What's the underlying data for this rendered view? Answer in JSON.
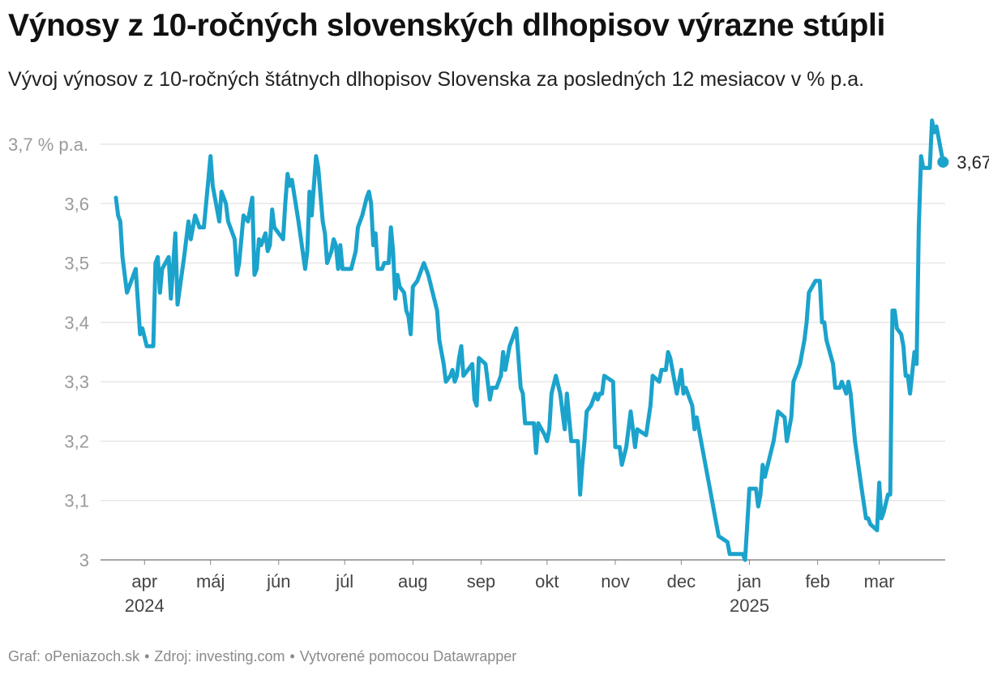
{
  "title": "Výnosy z 10-ročných slovenských dlhopisov výrazne stúpli",
  "subtitle": "Vývoj výnosov z 10-ročných štátnych dlhopisov Slovenska za posledných 12 mesiacov v % p.a.",
  "footer": {
    "graph": "Graf: oPeniazoch.sk",
    "source": "Zdroj: investing.com",
    "made": "Vytvorené pomocou Datawrapper"
  },
  "colors": {
    "line": "#1ba3cc",
    "grid": "#e2e2e2",
    "baseline": "#888888"
  },
  "chart_data": {
    "type": "line",
    "title": "Výnosy z 10-ročných slovenských dlhopisov výrazne stúpli",
    "subtitle": "Vývoj výnosov z 10-ročných štátnych dlhopisov Slovenska za posledných 12 mesiacov v % p.a.",
    "xlabel": "",
    "ylabel": "",
    "ylim": [
      3.0,
      3.7
    ],
    "xlim": [
      "2024-03-12",
      "2025-03-31"
    ],
    "grid": true,
    "y_ticks": [
      {
        "v": 3.7,
        "label": "3,7 % p.a."
      },
      {
        "v": 3.6,
        "label": "3,6"
      },
      {
        "v": 3.5,
        "label": "3,5"
      },
      {
        "v": 3.4,
        "label": "3,4"
      },
      {
        "v": 3.3,
        "label": "3,3"
      },
      {
        "v": 3.2,
        "label": "3,2"
      },
      {
        "v": 3.1,
        "label": "3,1"
      },
      {
        "v": 3.0,
        "label": "3"
      }
    ],
    "x_ticks": [
      {
        "date": "2024-04-01",
        "label": "apr",
        "year": "2024"
      },
      {
        "date": "2024-05-01",
        "label": "máj",
        "year": ""
      },
      {
        "date": "2024-06-01",
        "label": "jún",
        "year": ""
      },
      {
        "date": "2024-07-01",
        "label": "júl",
        "year": ""
      },
      {
        "date": "2024-08-01",
        "label": "aug",
        "year": ""
      },
      {
        "date": "2024-09-01",
        "label": "sep",
        "year": ""
      },
      {
        "date": "2024-10-01",
        "label": "okt",
        "year": ""
      },
      {
        "date": "2024-11-01",
        "label": "nov",
        "year": ""
      },
      {
        "date": "2024-12-01",
        "label": "dec",
        "year": ""
      },
      {
        "date": "2025-01-01",
        "label": "jan",
        "year": "2025"
      },
      {
        "date": "2025-02-01",
        "label": "feb",
        "year": ""
      },
      {
        "date": "2025-03-01",
        "label": "mar",
        "year": ""
      }
    ],
    "end_label": "3,67",
    "series": [
      {
        "points": [
          [
            "2024-03-19",
            3.61
          ],
          [
            "2024-03-20",
            3.58
          ],
          [
            "2024-03-21",
            3.57
          ],
          [
            "2024-03-22",
            3.51
          ],
          [
            "2024-03-24",
            3.45
          ],
          [
            "2024-03-26",
            3.47
          ],
          [
            "2024-03-28",
            3.49
          ],
          [
            "2024-03-30",
            3.38
          ],
          [
            "2024-03-31",
            3.39
          ],
          [
            "2024-04-02",
            3.36
          ],
          [
            "2024-04-05",
            3.36
          ],
          [
            "2024-04-06",
            3.5
          ],
          [
            "2024-04-07",
            3.51
          ],
          [
            "2024-04-08",
            3.45
          ],
          [
            "2024-04-09",
            3.49
          ],
          [
            "2024-04-12",
            3.51
          ],
          [
            "2024-04-13",
            3.44
          ],
          [
            "2024-04-15",
            3.55
          ],
          [
            "2024-04-16",
            3.43
          ],
          [
            "2024-04-19",
            3.51
          ],
          [
            "2024-04-21",
            3.57
          ],
          [
            "2024-04-22",
            3.54
          ],
          [
            "2024-04-24",
            3.58
          ],
          [
            "2024-04-26",
            3.56
          ],
          [
            "2024-04-28",
            3.56
          ],
          [
            "2024-04-30",
            3.64
          ],
          [
            "2024-05-01",
            3.68
          ],
          [
            "2024-05-02",
            3.63
          ],
          [
            "2024-05-04",
            3.59
          ],
          [
            "2024-05-05",
            3.57
          ],
          [
            "2024-05-06",
            3.62
          ],
          [
            "2024-05-08",
            3.6
          ],
          [
            "2024-05-09",
            3.57
          ],
          [
            "2024-05-12",
            3.54
          ],
          [
            "2024-05-13",
            3.48
          ],
          [
            "2024-05-14",
            3.5
          ],
          [
            "2024-05-16",
            3.58
          ],
          [
            "2024-05-18",
            3.57
          ],
          [
            "2024-05-20",
            3.61
          ],
          [
            "2024-05-21",
            3.48
          ],
          [
            "2024-05-22",
            3.49
          ],
          [
            "2024-05-23",
            3.54
          ],
          [
            "2024-05-24",
            3.53
          ],
          [
            "2024-05-26",
            3.55
          ],
          [
            "2024-05-27",
            3.52
          ],
          [
            "2024-05-28",
            3.53
          ],
          [
            "2024-05-29",
            3.59
          ],
          [
            "2024-05-30",
            3.56
          ],
          [
            "2024-06-03",
            3.54
          ],
          [
            "2024-06-04",
            3.6
          ],
          [
            "2024-06-05",
            3.65
          ],
          [
            "2024-06-06",
            3.63
          ],
          [
            "2024-06-07",
            3.64
          ],
          [
            "2024-06-10",
            3.57
          ],
          [
            "2024-06-13",
            3.49
          ],
          [
            "2024-06-14",
            3.52
          ],
          [
            "2024-06-15",
            3.62
          ],
          [
            "2024-06-16",
            3.58
          ],
          [
            "2024-06-18",
            3.68
          ],
          [
            "2024-06-19",
            3.66
          ],
          [
            "2024-06-21",
            3.57
          ],
          [
            "2024-06-22",
            3.55
          ],
          [
            "2024-06-23",
            3.5
          ],
          [
            "2024-06-25",
            3.52
          ],
          [
            "2024-06-26",
            3.54
          ],
          [
            "2024-06-27",
            3.53
          ],
          [
            "2024-06-28",
            3.49
          ],
          [
            "2024-06-29",
            3.53
          ],
          [
            "2024-06-30",
            3.49
          ],
          [
            "2024-07-04",
            3.49
          ],
          [
            "2024-07-06",
            3.52
          ],
          [
            "2024-07-07",
            3.56
          ],
          [
            "2024-07-09",
            3.58
          ],
          [
            "2024-07-11",
            3.61
          ],
          [
            "2024-07-12",
            3.62
          ],
          [
            "2024-07-13",
            3.6
          ],
          [
            "2024-07-14",
            3.53
          ],
          [
            "2024-07-15",
            3.55
          ],
          [
            "2024-07-16",
            3.49
          ],
          [
            "2024-07-18",
            3.49
          ],
          [
            "2024-07-19",
            3.5
          ],
          [
            "2024-07-21",
            3.5
          ],
          [
            "2024-07-22",
            3.56
          ],
          [
            "2024-07-23",
            3.52
          ],
          [
            "2024-07-24",
            3.44
          ],
          [
            "2024-07-25",
            3.48
          ],
          [
            "2024-07-26",
            3.46
          ],
          [
            "2024-07-28",
            3.45
          ],
          [
            "2024-07-29",
            3.42
          ],
          [
            "2024-07-30",
            3.41
          ],
          [
            "2024-07-31",
            3.38
          ],
          [
            "2024-08-01",
            3.46
          ],
          [
            "2024-08-03",
            3.47
          ],
          [
            "2024-08-05",
            3.49
          ],
          [
            "2024-08-06",
            3.5
          ],
          [
            "2024-08-08",
            3.48
          ],
          [
            "2024-08-10",
            3.45
          ],
          [
            "2024-08-12",
            3.42
          ],
          [
            "2024-08-13",
            3.37
          ],
          [
            "2024-08-15",
            3.33
          ],
          [
            "2024-08-16",
            3.3
          ],
          [
            "2024-08-18",
            3.31
          ],
          [
            "2024-08-19",
            3.32
          ],
          [
            "2024-08-20",
            3.3
          ],
          [
            "2024-08-21",
            3.31
          ],
          [
            "2024-08-22",
            3.34
          ],
          [
            "2024-08-23",
            3.36
          ],
          [
            "2024-08-24",
            3.31
          ],
          [
            "2024-08-26",
            3.32
          ],
          [
            "2024-08-28",
            3.33
          ],
          [
            "2024-08-29",
            3.27
          ],
          [
            "2024-08-30",
            3.26
          ],
          [
            "2024-08-31",
            3.34
          ],
          [
            "2024-09-03",
            3.33
          ],
          [
            "2024-09-05",
            3.27
          ],
          [
            "2024-09-06",
            3.29
          ],
          [
            "2024-09-08",
            3.29
          ],
          [
            "2024-09-10",
            3.31
          ],
          [
            "2024-09-11",
            3.35
          ],
          [
            "2024-09-12",
            3.32
          ],
          [
            "2024-09-14",
            3.36
          ],
          [
            "2024-09-16",
            3.38
          ],
          [
            "2024-09-17",
            3.39
          ],
          [
            "2024-09-19",
            3.29
          ],
          [
            "2024-09-20",
            3.28
          ],
          [
            "2024-09-21",
            3.23
          ],
          [
            "2024-09-25",
            3.23
          ],
          [
            "2024-09-26",
            3.18
          ],
          [
            "2024-09-27",
            3.23
          ],
          [
            "2024-09-30",
            3.21
          ],
          [
            "2024-10-01",
            3.2
          ],
          [
            "2024-10-02",
            3.22
          ],
          [
            "2024-10-03",
            3.28
          ],
          [
            "2024-10-05",
            3.31
          ],
          [
            "2024-10-07",
            3.28
          ],
          [
            "2024-10-08",
            3.25
          ],
          [
            "2024-10-09",
            3.22
          ],
          [
            "2024-10-10",
            3.28
          ],
          [
            "2024-10-12",
            3.2
          ],
          [
            "2024-10-15",
            3.2
          ],
          [
            "2024-10-16",
            3.11
          ],
          [
            "2024-10-17",
            3.16
          ],
          [
            "2024-10-18",
            3.2
          ],
          [
            "2024-10-19",
            3.25
          ],
          [
            "2024-10-21",
            3.26
          ],
          [
            "2024-10-23",
            3.28
          ],
          [
            "2024-10-24",
            3.27
          ],
          [
            "2024-10-25",
            3.28
          ],
          [
            "2024-10-26",
            3.28
          ],
          [
            "2024-10-27",
            3.31
          ],
          [
            "2024-10-31",
            3.3
          ],
          [
            "2024-11-01",
            3.19
          ],
          [
            "2024-11-03",
            3.19
          ],
          [
            "2024-11-04",
            3.16
          ],
          [
            "2024-11-06",
            3.19
          ],
          [
            "2024-11-08",
            3.25
          ],
          [
            "2024-11-09",
            3.22
          ],
          [
            "2024-11-10",
            3.19
          ],
          [
            "2024-11-11",
            3.22
          ],
          [
            "2024-11-15",
            3.21
          ],
          [
            "2024-11-17",
            3.26
          ],
          [
            "2024-11-18",
            3.31
          ],
          [
            "2024-11-21",
            3.3
          ],
          [
            "2024-11-22",
            3.32
          ],
          [
            "2024-11-24",
            3.32
          ],
          [
            "2024-11-25",
            3.35
          ],
          [
            "2024-11-26",
            3.34
          ],
          [
            "2024-11-27",
            3.32
          ],
          [
            "2024-11-28",
            3.3
          ],
          [
            "2024-11-29",
            3.28
          ],
          [
            "2024-12-01",
            3.32
          ],
          [
            "2024-12-02",
            3.28
          ],
          [
            "2024-12-03",
            3.29
          ],
          [
            "2024-12-06",
            3.26
          ],
          [
            "2024-12-07",
            3.22
          ],
          [
            "2024-12-08",
            3.24
          ],
          [
            "2024-12-10",
            3.2
          ],
          [
            "2024-12-12",
            3.16
          ],
          [
            "2024-12-14",
            3.12
          ],
          [
            "2024-12-16",
            3.08
          ],
          [
            "2024-12-18",
            3.04
          ],
          [
            "2024-12-22",
            3.03
          ],
          [
            "2024-12-23",
            3.01
          ],
          [
            "2024-12-27",
            3.01
          ],
          [
            "2024-12-29",
            3.01
          ],
          [
            "2024-12-30",
            3.0
          ],
          [
            "2025-01-01",
            3.12
          ],
          [
            "2025-01-04",
            3.12
          ],
          [
            "2025-01-05",
            3.09
          ],
          [
            "2025-01-06",
            3.11
          ],
          [
            "2025-01-07",
            3.16
          ],
          [
            "2025-01-08",
            3.14
          ],
          [
            "2025-01-10",
            3.17
          ],
          [
            "2025-01-12",
            3.2
          ],
          [
            "2025-01-14",
            3.25
          ],
          [
            "2025-01-17",
            3.24
          ],
          [
            "2025-01-18",
            3.2
          ],
          [
            "2025-01-20",
            3.24
          ],
          [
            "2025-01-21",
            3.3
          ],
          [
            "2025-01-23",
            3.32
          ],
          [
            "2025-01-24",
            3.33
          ],
          [
            "2025-01-26",
            3.37
          ],
          [
            "2025-01-27",
            3.4
          ],
          [
            "2025-01-28",
            3.45
          ],
          [
            "2025-01-31",
            3.47
          ],
          [
            "2025-02-02",
            3.47
          ],
          [
            "2025-02-03",
            3.4
          ],
          [
            "2025-02-04",
            3.4
          ],
          [
            "2025-02-05",
            3.37
          ],
          [
            "2025-02-08",
            3.33
          ],
          [
            "2025-02-09",
            3.29
          ],
          [
            "2025-02-11",
            3.29
          ],
          [
            "2025-02-12",
            3.3
          ],
          [
            "2025-02-14",
            3.28
          ],
          [
            "2025-02-15",
            3.3
          ],
          [
            "2025-02-16",
            3.28
          ],
          [
            "2025-02-18",
            3.2
          ],
          [
            "2025-02-21",
            3.12
          ],
          [
            "2025-02-23",
            3.07
          ],
          [
            "2025-02-24",
            3.07
          ],
          [
            "2025-02-25",
            3.06
          ],
          [
            "2025-02-28",
            3.05
          ],
          [
            "2025-03-01",
            3.13
          ],
          [
            "2025-03-02",
            3.07
          ],
          [
            "2025-03-03",
            3.08
          ],
          [
            "2025-03-05",
            3.11
          ],
          [
            "2025-03-06",
            3.11
          ],
          [
            "2025-03-07",
            3.42
          ],
          [
            "2025-03-08",
            3.42
          ],
          [
            "2025-03-09",
            3.39
          ],
          [
            "2025-03-11",
            3.38
          ],
          [
            "2025-03-12",
            3.36
          ],
          [
            "2025-03-13",
            3.31
          ],
          [
            "2025-03-14",
            3.31
          ],
          [
            "2025-03-15",
            3.28
          ],
          [
            "2025-03-17",
            3.35
          ],
          [
            "2025-03-18",
            3.33
          ],
          [
            "2025-03-19",
            3.56
          ],
          [
            "2025-03-20",
            3.68
          ],
          [
            "2025-03-21",
            3.66
          ],
          [
            "2025-03-24",
            3.66
          ],
          [
            "2025-03-25",
            3.74
          ],
          [
            "2025-03-26",
            3.72
          ],
          [
            "2025-03-27",
            3.73
          ],
          [
            "2025-03-28",
            3.71
          ],
          [
            "2025-03-30",
            3.67
          ]
        ]
      }
    ]
  }
}
